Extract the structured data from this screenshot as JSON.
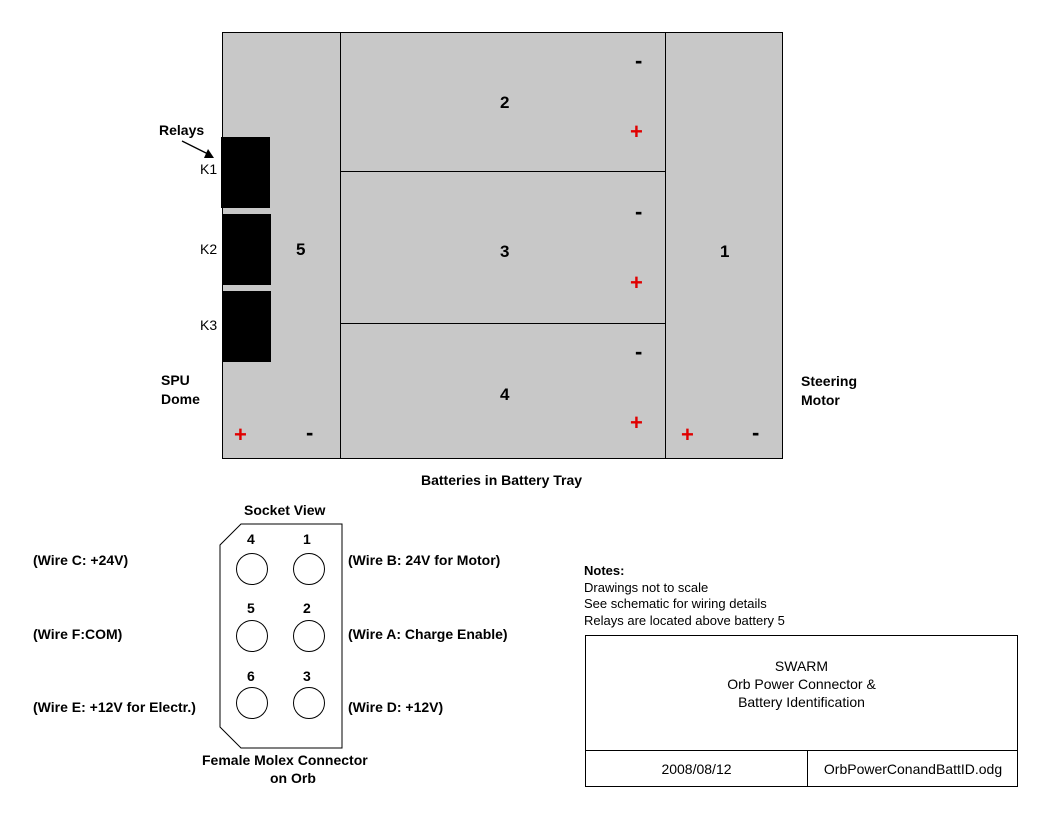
{
  "tray": {
    "caption": "Batteries in Battery Tray",
    "relays_label": "Relays",
    "k1": "K1",
    "k2": "K2",
    "k3": "K3",
    "spu_line1": "SPU",
    "spu_line2": "Dome",
    "steering_line1": "Steering",
    "steering_line2": "Motor",
    "battery_numbers": {
      "b1": "1",
      "b2": "2",
      "b3": "3",
      "b4": "4",
      "b5": "5"
    },
    "plus_symbol": "+",
    "minus_symbol": "-",
    "colors": {
      "battery_fill": "#c8c8c8",
      "plus": "#e00000",
      "relay": "#000000"
    }
  },
  "connector": {
    "view_label": "Socket View",
    "caption_line1": "Female Molex Connector",
    "caption_line2": "on Orb",
    "pins": {
      "p1": "1",
      "p2": "2",
      "p3": "3",
      "p4": "4",
      "p5": "5",
      "p6": "6"
    },
    "wire_c": "(Wire C: +24V)",
    "wire_b": "(Wire B: 24V for Motor)",
    "wire_f": "(Wire F:COM)",
    "wire_a": "(Wire A: Charge Enable)",
    "wire_e": "(Wire E: +12V for Electr.)",
    "wire_d": "(Wire D: +12V)"
  },
  "notes": {
    "heading": "Notes:",
    "line1": "Drawings not to scale",
    "line2": "See schematic for wiring details",
    "line3": "Relays are located above battery 5"
  },
  "title_block": {
    "line1": "SWARM",
    "line2": "Orb Power Connector &",
    "line3": "Battery Identification",
    "date": "2008/08/12",
    "filename": "OrbPowerConandBattID.odg"
  }
}
